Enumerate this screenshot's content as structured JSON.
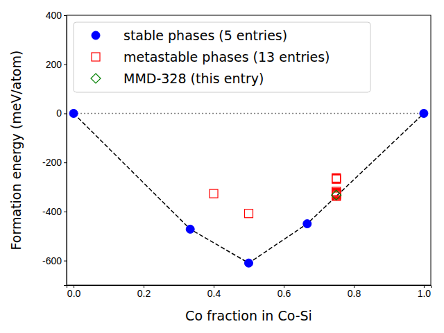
{
  "chart_data": {
    "type": "scatter",
    "xlabel": "Co fraction in Co-Si",
    "ylabel": "Formation energy (meV/atom)",
    "xlim": [
      -0.02,
      1.02
    ],
    "ylim": [
      -700,
      400
    ],
    "xticks": [
      {
        "value": 0,
        "label": "0.0"
      },
      {
        "value": 0.2,
        "label": "0.2"
      },
      {
        "value": 0.4,
        "label": "0.4"
      },
      {
        "value": 0.6,
        "label": "0.6"
      },
      {
        "value": 0.8,
        "label": "0.8"
      },
      {
        "value": 1,
        "label": "1.0"
      }
    ],
    "yticks": [
      -600,
      -400,
      -200,
      0,
      200,
      400
    ],
    "legend": "upper left",
    "series": [
      {
        "type": "line",
        "color": "#808080",
        "line_style": "dotted",
        "marker": "none",
        "x": [
          0,
          1
        ],
        "values": [
          0,
          0
        ]
      },
      {
        "type": "line",
        "color": "#000000",
        "line_style": "dashed",
        "marker": "none",
        "x": [
          0,
          0.333,
          0.5,
          0.667,
          1
        ],
        "values": [
          0,
          -472,
          -610,
          -450,
          0
        ]
      },
      {
        "type": "scatter",
        "name": "stable phases (5 entries)",
        "color": "#0000ff",
        "marker": "circle",
        "x": [
          0,
          0.333,
          0.5,
          0.667,
          1
        ],
        "values": [
          0,
          -472,
          -610,
          -450,
          0
        ]
      },
      {
        "type": "scatter",
        "name": "metastable phases (13 entries)",
        "color": "#ff0000",
        "marker": "open-square",
        "x": [
          0.4,
          0.5,
          0.75,
          0.75,
          0.75,
          0.75,
          0.75,
          0.75,
          0.75,
          0.75,
          0.75,
          0.75,
          0.75
        ],
        "values": [
          -327,
          -408,
          -263,
          -266,
          -268,
          -318,
          -322,
          -325,
          -328,
          -330,
          -332,
          -335,
          -338
        ]
      },
      {
        "type": "scatter",
        "name": "MMD-328 (this entry)",
        "color": "#008000",
        "marker": "open-diamond",
        "x": [
          0.75
        ],
        "values": [
          -333
        ]
      }
    ]
  }
}
